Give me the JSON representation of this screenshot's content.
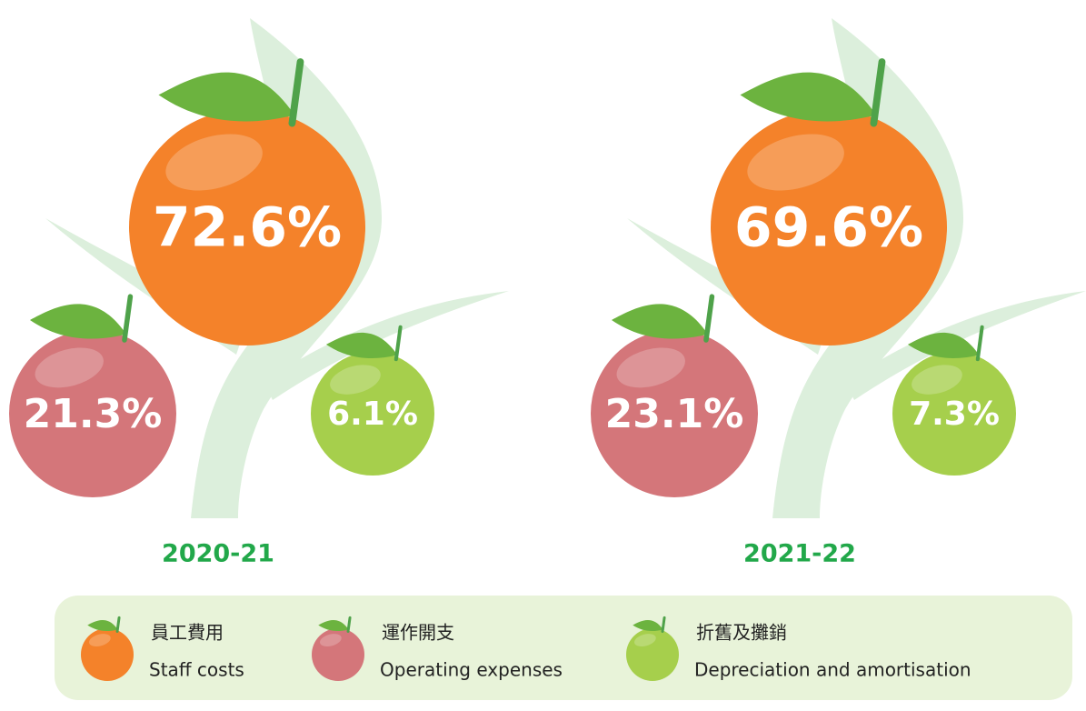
{
  "chart_data": {
    "type": "fruit",
    "categories": [
      "2020-21",
      "2021-22"
    ],
    "series": [
      {
        "name_zh": "員工費用",
        "name": "Staff costs",
        "color": "#f4822a",
        "values": [
          72.6,
          69.6
        ],
        "value_labels": [
          "72.6%",
          "69.6%"
        ]
      },
      {
        "name_zh": "運作開支",
        "name": "Operating expenses",
        "color": "#d4767a",
        "values": [
          21.3,
          23.1
        ],
        "value_labels": [
          "21.3%",
          "23.1%"
        ]
      },
      {
        "name_zh": "折舊及攤銷",
        "name": "Depreciation and amortisation",
        "color": "#a6cf4c",
        "values": [
          6.1,
          7.3
        ],
        "value_labels": [
          "6.1%",
          "7.3%"
        ]
      }
    ]
  }
}
